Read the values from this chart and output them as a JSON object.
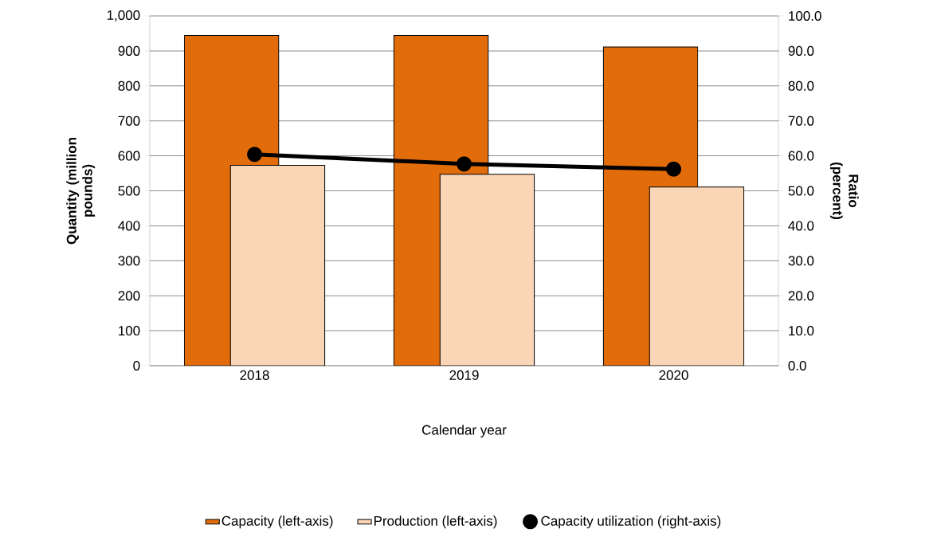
{
  "chart_data": {
    "type": "bar",
    "categories": [
      "2018",
      "2019",
      "2020"
    ],
    "xlabel": "Calendar year",
    "ylabel": "Quantity (million pounds)",
    "y2label": "Ratio (percent)",
    "series": [
      {
        "name": "Capacity (left-axis)",
        "color": "#e36c0a",
        "values": [
          944,
          944,
          911
        ]
      },
      {
        "name": "Production (left-axis)",
        "color": "#fad5b6",
        "values": [
          573,
          547,
          511
        ]
      },
      {
        "name": "Capacity utilization (right-axis)",
        "type": "line",
        "axis": "y2",
        "color": "#000000",
        "values": [
          60.4,
          57.7,
          56.2
        ],
        "marker": "circle",
        "line_style": "solid"
      }
    ],
    "ylim": [
      0,
      1000
    ],
    "yticks": [
      0,
      100,
      200,
      300,
      400,
      500,
      600,
      700,
      800,
      900,
      {
        "value": 1000,
        "label": "1,000"
      }
    ],
    "y2lim": [
      0,
      100
    ],
    "y2ticks": [
      {
        "value": 0,
        "label": "0.0"
      },
      {
        "value": 10,
        "label": "10.0"
      },
      {
        "value": 20,
        "label": "20.0"
      },
      {
        "value": 30,
        "label": "30.0"
      },
      {
        "value": 40,
        "label": "40.0"
      },
      {
        "value": 50,
        "label": "50.0"
      },
      {
        "value": 60,
        "label": "60.0"
      },
      {
        "value": 70,
        "label": "70.0"
      },
      {
        "value": 80,
        "label": "80.0"
      },
      {
        "value": 90,
        "label": "90.0"
      },
      {
        "value": 100,
        "label": "100.0"
      }
    ],
    "grid": "y",
    "legend": "bottom"
  }
}
